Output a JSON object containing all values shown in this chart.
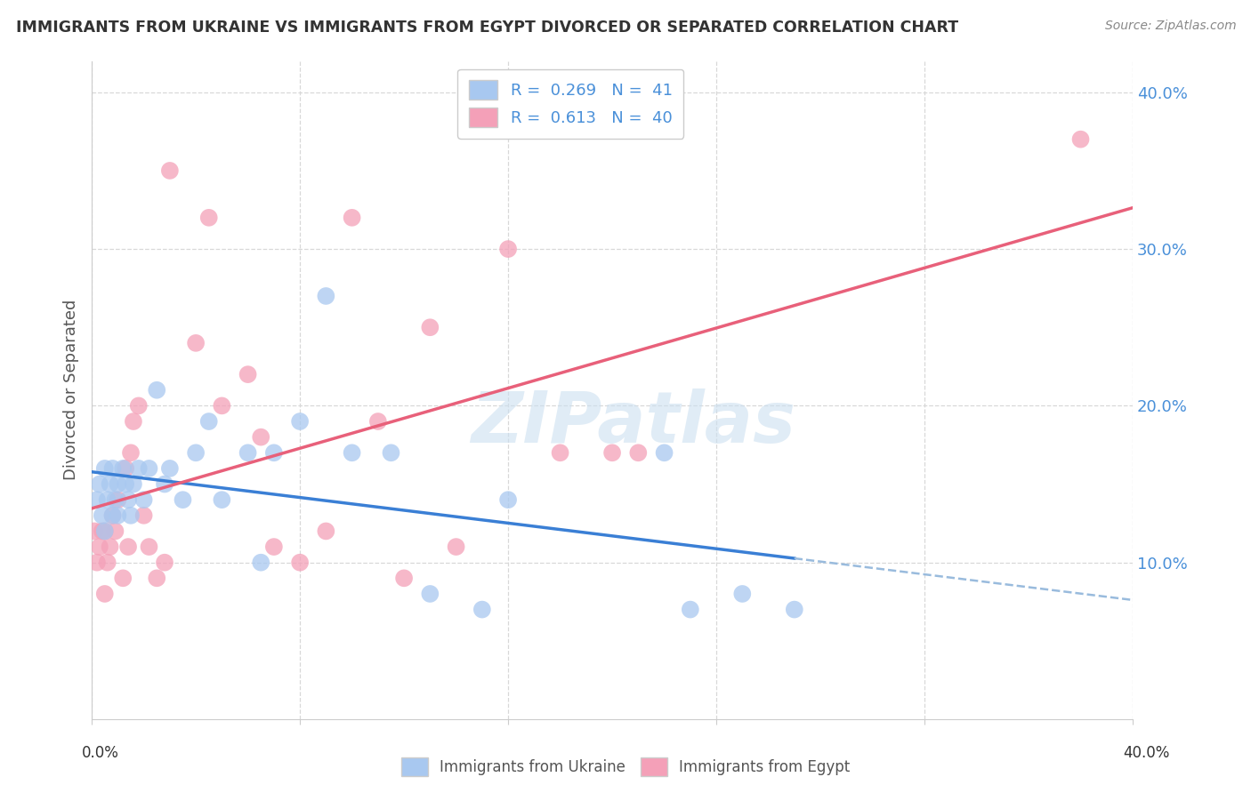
{
  "title": "IMMIGRANTS FROM UKRAINE VS IMMIGRANTS FROM EGYPT DIVORCED OR SEPARATED CORRELATION CHART",
  "source": "Source: ZipAtlas.com",
  "ylabel": "Divorced or Separated",
  "xmin": 0.0,
  "xmax": 0.4,
  "ymin": 0.0,
  "ymax": 0.42,
  "yticks": [
    0.1,
    0.2,
    0.3,
    0.4
  ],
  "ukraine_R": 0.269,
  "ukraine_N": 41,
  "egypt_R": 0.613,
  "egypt_N": 40,
  "ukraine_color": "#a8c8f0",
  "egypt_color": "#f4a0b8",
  "ukraine_line_color": "#3a7fd5",
  "egypt_line_color": "#e8607a",
  "dashed_color": "#99bbdd",
  "ukraine_scatter_x": [
    0.002,
    0.003,
    0.004,
    0.005,
    0.005,
    0.006,
    0.007,
    0.008,
    0.008,
    0.009,
    0.01,
    0.01,
    0.012,
    0.013,
    0.014,
    0.015,
    0.016,
    0.018,
    0.02,
    0.022,
    0.025,
    0.028,
    0.03,
    0.035,
    0.04,
    0.045,
    0.05,
    0.06,
    0.065,
    0.07,
    0.08,
    0.09,
    0.1,
    0.115,
    0.13,
    0.15,
    0.16,
    0.22,
    0.23,
    0.25,
    0.27
  ],
  "ukraine_scatter_y": [
    0.14,
    0.15,
    0.13,
    0.16,
    0.12,
    0.14,
    0.15,
    0.13,
    0.16,
    0.14,
    0.15,
    0.13,
    0.16,
    0.15,
    0.14,
    0.13,
    0.15,
    0.16,
    0.14,
    0.16,
    0.21,
    0.15,
    0.16,
    0.14,
    0.17,
    0.19,
    0.14,
    0.17,
    0.1,
    0.17,
    0.19,
    0.27,
    0.17,
    0.17,
    0.08,
    0.07,
    0.14,
    0.17,
    0.07,
    0.08,
    0.07
  ],
  "egypt_scatter_x": [
    0.001,
    0.002,
    0.003,
    0.004,
    0.005,
    0.005,
    0.006,
    0.007,
    0.008,
    0.009,
    0.01,
    0.012,
    0.013,
    0.014,
    0.015,
    0.016,
    0.018,
    0.02,
    0.022,
    0.025,
    0.028,
    0.03,
    0.04,
    0.045,
    0.05,
    0.06,
    0.065,
    0.07,
    0.08,
    0.09,
    0.1,
    0.11,
    0.12,
    0.13,
    0.14,
    0.16,
    0.18,
    0.2,
    0.21,
    0.38
  ],
  "egypt_scatter_y": [
    0.12,
    0.1,
    0.11,
    0.12,
    0.08,
    0.12,
    0.1,
    0.11,
    0.13,
    0.12,
    0.14,
    0.09,
    0.16,
    0.11,
    0.17,
    0.19,
    0.2,
    0.13,
    0.11,
    0.09,
    0.1,
    0.35,
    0.24,
    0.32,
    0.2,
    0.22,
    0.18,
    0.11,
    0.1,
    0.12,
    0.32,
    0.19,
    0.09,
    0.25,
    0.11,
    0.3,
    0.17,
    0.17,
    0.17,
    0.37
  ],
  "watermark_text": "ZIPatlas",
  "background_color": "#ffffff",
  "grid_color": "#d8d8d8"
}
